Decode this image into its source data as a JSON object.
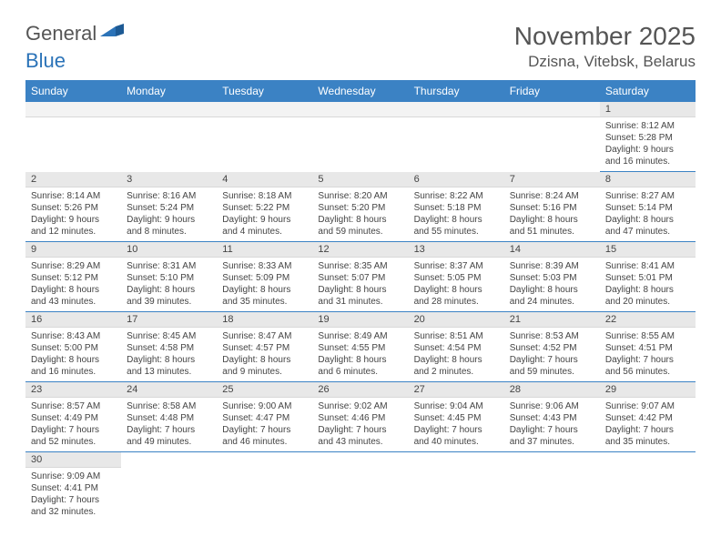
{
  "logo": {
    "text1": "General",
    "text2": "Blue"
  },
  "title": "November 2025",
  "location": "Dzisna, Vitebsk, Belarus",
  "colors": {
    "header_bg": "#3b82c4",
    "header_text": "#ffffff",
    "daynum_bg": "#e8e8e8",
    "row_border": "#3b82c4",
    "text": "#444444",
    "logo_gray": "#555555",
    "logo_blue": "#2b73b8"
  },
  "columns": [
    "Sunday",
    "Monday",
    "Tuesday",
    "Wednesday",
    "Thursday",
    "Friday",
    "Saturday"
  ],
  "weeks": [
    [
      null,
      null,
      null,
      null,
      null,
      null,
      {
        "n": "1",
        "sr": "8:12 AM",
        "ss": "5:28 PM",
        "dl": "9 hours and 16 minutes."
      }
    ],
    [
      {
        "n": "2",
        "sr": "8:14 AM",
        "ss": "5:26 PM",
        "dl": "9 hours and 12 minutes."
      },
      {
        "n": "3",
        "sr": "8:16 AM",
        "ss": "5:24 PM",
        "dl": "9 hours and 8 minutes."
      },
      {
        "n": "4",
        "sr": "8:18 AM",
        "ss": "5:22 PM",
        "dl": "9 hours and 4 minutes."
      },
      {
        "n": "5",
        "sr": "8:20 AM",
        "ss": "5:20 PM",
        "dl": "8 hours and 59 minutes."
      },
      {
        "n": "6",
        "sr": "8:22 AM",
        "ss": "5:18 PM",
        "dl": "8 hours and 55 minutes."
      },
      {
        "n": "7",
        "sr": "8:24 AM",
        "ss": "5:16 PM",
        "dl": "8 hours and 51 minutes."
      },
      {
        "n": "8",
        "sr": "8:27 AM",
        "ss": "5:14 PM",
        "dl": "8 hours and 47 minutes."
      }
    ],
    [
      {
        "n": "9",
        "sr": "8:29 AM",
        "ss": "5:12 PM",
        "dl": "8 hours and 43 minutes."
      },
      {
        "n": "10",
        "sr": "8:31 AM",
        "ss": "5:10 PM",
        "dl": "8 hours and 39 minutes."
      },
      {
        "n": "11",
        "sr": "8:33 AM",
        "ss": "5:09 PM",
        "dl": "8 hours and 35 minutes."
      },
      {
        "n": "12",
        "sr": "8:35 AM",
        "ss": "5:07 PM",
        "dl": "8 hours and 31 minutes."
      },
      {
        "n": "13",
        "sr": "8:37 AM",
        "ss": "5:05 PM",
        "dl": "8 hours and 28 minutes."
      },
      {
        "n": "14",
        "sr": "8:39 AM",
        "ss": "5:03 PM",
        "dl": "8 hours and 24 minutes."
      },
      {
        "n": "15",
        "sr": "8:41 AM",
        "ss": "5:01 PM",
        "dl": "8 hours and 20 minutes."
      }
    ],
    [
      {
        "n": "16",
        "sr": "8:43 AM",
        "ss": "5:00 PM",
        "dl": "8 hours and 16 minutes."
      },
      {
        "n": "17",
        "sr": "8:45 AM",
        "ss": "4:58 PM",
        "dl": "8 hours and 13 minutes."
      },
      {
        "n": "18",
        "sr": "8:47 AM",
        "ss": "4:57 PM",
        "dl": "8 hours and 9 minutes."
      },
      {
        "n": "19",
        "sr": "8:49 AM",
        "ss": "4:55 PM",
        "dl": "8 hours and 6 minutes."
      },
      {
        "n": "20",
        "sr": "8:51 AM",
        "ss": "4:54 PM",
        "dl": "8 hours and 2 minutes."
      },
      {
        "n": "21",
        "sr": "8:53 AM",
        "ss": "4:52 PM",
        "dl": "7 hours and 59 minutes."
      },
      {
        "n": "22",
        "sr": "8:55 AM",
        "ss": "4:51 PM",
        "dl": "7 hours and 56 minutes."
      }
    ],
    [
      {
        "n": "23",
        "sr": "8:57 AM",
        "ss": "4:49 PM",
        "dl": "7 hours and 52 minutes."
      },
      {
        "n": "24",
        "sr": "8:58 AM",
        "ss": "4:48 PM",
        "dl": "7 hours and 49 minutes."
      },
      {
        "n": "25",
        "sr": "9:00 AM",
        "ss": "4:47 PM",
        "dl": "7 hours and 46 minutes."
      },
      {
        "n": "26",
        "sr": "9:02 AM",
        "ss": "4:46 PM",
        "dl": "7 hours and 43 minutes."
      },
      {
        "n": "27",
        "sr": "9:04 AM",
        "ss": "4:45 PM",
        "dl": "7 hours and 40 minutes."
      },
      {
        "n": "28",
        "sr": "9:06 AM",
        "ss": "4:43 PM",
        "dl": "7 hours and 37 minutes."
      },
      {
        "n": "29",
        "sr": "9:07 AM",
        "ss": "4:42 PM",
        "dl": "7 hours and 35 minutes."
      }
    ],
    [
      {
        "n": "30",
        "sr": "9:09 AM",
        "ss": "4:41 PM",
        "dl": "7 hours and 32 minutes."
      },
      null,
      null,
      null,
      null,
      null,
      null
    ]
  ],
  "labels": {
    "sunrise": "Sunrise:",
    "sunset": "Sunset:",
    "daylight": "Daylight:"
  }
}
